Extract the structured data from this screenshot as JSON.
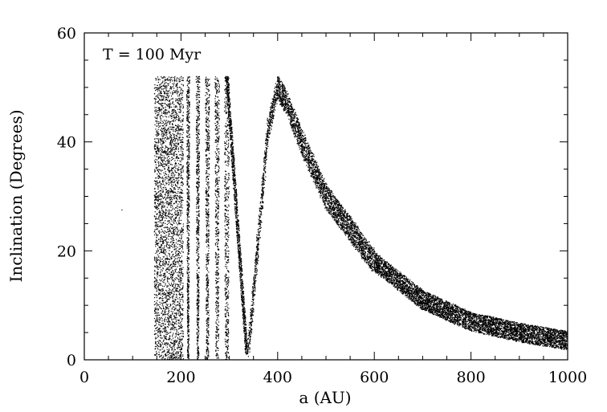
{
  "chart_data": {
    "type": "scatter",
    "title": "",
    "annotation": "T = 100 Myr",
    "xlabel": "a (AU)",
    "ylabel": "Inclination (Degrees)",
    "xlim": [
      0,
      1000
    ],
    "ylim": [
      0,
      60
    ],
    "x_major_ticks": [
      0,
      200,
      400,
      600,
      800,
      1000
    ],
    "y_major_ticks": [
      0,
      20,
      40,
      60
    ],
    "x_tick_labels": [
      "0",
      "200",
      "400",
      "600",
      "800",
      "1000"
    ],
    "y_tick_labels": [
      "0",
      "20",
      "40",
      "60"
    ],
    "grid": false,
    "legend": "none",
    "marker_color": "#000000",
    "series": [
      {
        "distribution_summary": [
          {
            "region": "dense vertical band",
            "a_range": [
              145,
              205
            ],
            "inclination_range": [
              0,
              52
            ]
          },
          {
            "region": "vertical resonance tongues",
            "tongue_centers_a": [
              215,
              235,
              255,
              275,
              295
            ],
            "inclination_range": [
              0,
              52
            ]
          },
          {
            "region": "V-shaped branch",
            "a_range": [
              300,
              340
            ],
            "inclination_range": [
              0,
              52
            ],
            "min_at_a": 337
          },
          {
            "region": "main ridge",
            "a_range": [
              340,
              1000
            ],
            "peak": {
              "a": 400,
              "inclination": 50
            },
            "curve": [
              [
                340,
                2
              ],
              [
                360,
                22
              ],
              [
                380,
                42
              ],
              [
                400,
                50
              ],
              [
                420,
                47
              ],
              [
                450,
                40
              ],
              [
                500,
                30
              ],
              [
                600,
                18
              ],
              [
                700,
                11
              ],
              [
                800,
                7
              ],
              [
                900,
                5
              ],
              [
                1000,
                3.5
              ]
            ]
          }
        ]
      }
    ],
    "outliers": [
      [
        78,
        27.5
      ]
    ]
  }
}
